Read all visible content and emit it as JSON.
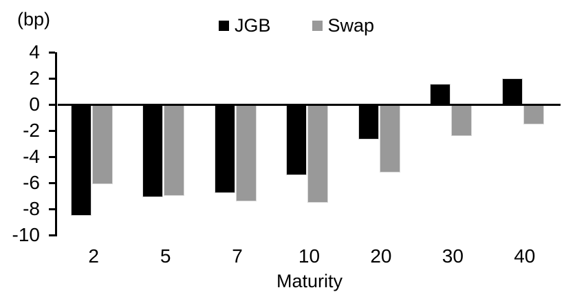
{
  "labels": {
    "unit": "(bp)",
    "xlabel": "Maturity"
  },
  "legend": [
    {
      "name": "JGB",
      "color": "#000000"
    },
    {
      "name": "Swap",
      "color": "#999999"
    }
  ],
  "colors": {
    "axis": "#000000",
    "bar_edge": "#d9d9d9",
    "background": "#ffffff"
  },
  "chart_data": {
    "type": "bar",
    "title": "",
    "categories": [
      "2",
      "5",
      "7",
      "10",
      "20",
      "30",
      "40"
    ],
    "series": [
      {
        "name": "JGB",
        "color": "#000000",
        "values": [
          -8.5,
          -7.1,
          -6.8,
          -5.4,
          -2.7,
          1.6,
          2.0
        ]
      },
      {
        "name": "Swap",
        "color": "#999999",
        "values": [
          -6.1,
          -7.0,
          -7.4,
          -7.5,
          -5.2,
          -2.4,
          -1.5
        ]
      }
    ],
    "xlabel": "Maturity",
    "ylabel": "(bp)",
    "ylim": [
      -10,
      4
    ],
    "yticks": [
      4,
      2,
      0,
      -2,
      -4,
      -6,
      -8,
      -10
    ],
    "grid": false,
    "legend_position": "top-center"
  }
}
